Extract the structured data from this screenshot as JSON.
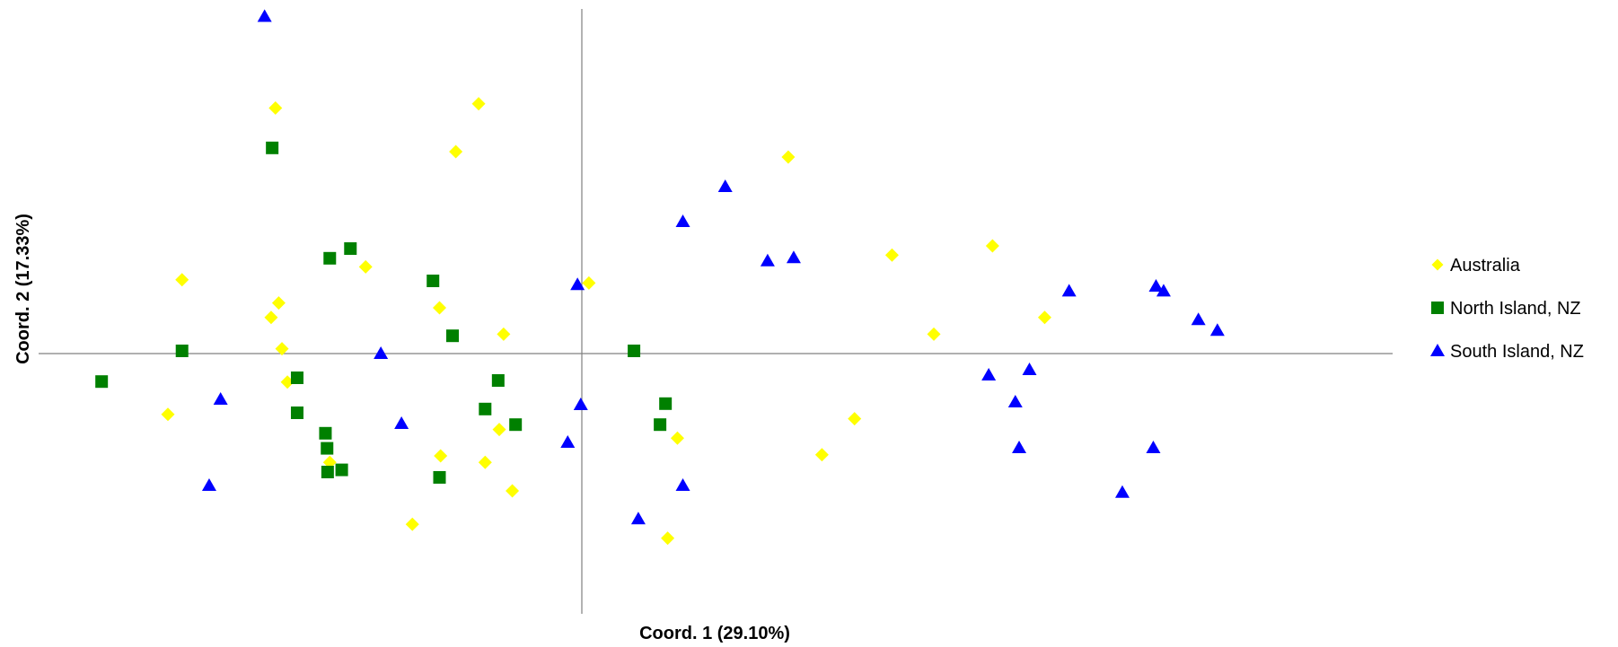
{
  "chart_data": {
    "type": "scatter",
    "title": "",
    "xlabel": "Coord. 1 (29.10%)",
    "ylabel": "Coord. 2  (17.33%)",
    "xlim": [
      -1.0,
      1.5
    ],
    "ylim": [
      -0.48,
      0.64
    ],
    "grid": false,
    "legend": "right",
    "series": [
      {
        "name": "Australia",
        "marker": "diamond",
        "color": "#ffff00",
        "points": [
          [
            -0.564,
            0.456
          ],
          [
            -0.19,
            0.464
          ],
          [
            -0.232,
            0.375
          ],
          [
            0.38,
            0.365
          ],
          [
            -0.736,
            0.137
          ],
          [
            -0.398,
            0.161
          ],
          [
            0.013,
            0.131
          ],
          [
            0.571,
            0.183
          ],
          [
            0.756,
            0.2
          ],
          [
            -0.558,
            0.094
          ],
          [
            -0.572,
            0.067
          ],
          [
            -0.262,
            0.085
          ],
          [
            -0.144,
            0.036
          ],
          [
            0.648,
            0.036
          ],
          [
            0.852,
            0.067
          ],
          [
            -0.552,
            0.009
          ],
          [
            -0.542,
            -0.053
          ],
          [
            -0.762,
            -0.113
          ],
          [
            -0.152,
            -0.141
          ],
          [
            0.176,
            -0.157
          ],
          [
            0.502,
            -0.121
          ],
          [
            0.442,
            -0.188
          ],
          [
            -0.26,
            -0.19
          ],
          [
            -0.178,
            -0.202
          ],
          [
            -0.464,
            -0.202
          ],
          [
            -0.128,
            -0.255
          ],
          [
            -0.312,
            -0.317
          ],
          [
            0.158,
            -0.343
          ]
        ]
      },
      {
        "name": "North Island, NZ",
        "marker": "square",
        "color": "#008000",
        "points": [
          [
            -0.57,
            0.382
          ],
          [
            -0.426,
            0.195
          ],
          [
            -0.464,
            0.177
          ],
          [
            -0.274,
            0.135
          ],
          [
            -0.238,
            0.033
          ],
          [
            0.096,
            0.005
          ],
          [
            -0.736,
            0.005
          ],
          [
            -0.884,
            -0.052
          ],
          [
            -0.524,
            -0.045
          ],
          [
            -0.154,
            -0.05
          ],
          [
            -0.524,
            -0.11
          ],
          [
            -0.178,
            -0.103
          ],
          [
            0.154,
            -0.093
          ],
          [
            -0.472,
            -0.148
          ],
          [
            -0.122,
            -0.132
          ],
          [
            0.144,
            -0.132
          ],
          [
            -0.469,
            -0.176
          ],
          [
            -0.468,
            -0.22
          ],
          [
            -0.442,
            -0.216
          ],
          [
            -0.262,
            -0.23
          ]
        ]
      },
      {
        "name": "South Island, NZ",
        "marker": "triangle",
        "color": "#0000ff",
        "points": [
          [
            -0.584,
            0.626
          ],
          [
            0.264,
            0.31
          ],
          [
            0.186,
            0.245
          ],
          [
            0.342,
            0.172
          ],
          [
            0.39,
            0.178
          ],
          [
            -0.008,
            0.128
          ],
          [
            0.897,
            0.116
          ],
          [
            1.057,
            0.125
          ],
          [
            1.071,
            0.116
          ],
          [
            1.135,
            0.063
          ],
          [
            1.17,
            0.043
          ],
          [
            -0.37,
            0.0
          ],
          [
            0.749,
            -0.04
          ],
          [
            0.824,
            -0.03
          ],
          [
            -0.665,
            -0.085
          ],
          [
            0.798,
            -0.09
          ],
          [
            -0.002,
            -0.095
          ],
          [
            -0.332,
            -0.13
          ],
          [
            -0.026,
            -0.165
          ],
          [
            0.805,
            -0.175
          ],
          [
            1.052,
            -0.175
          ],
          [
            -0.686,
            -0.245
          ],
          [
            0.186,
            -0.245
          ],
          [
            0.995,
            -0.258
          ],
          [
            0.104,
            -0.307
          ]
        ]
      }
    ]
  }
}
